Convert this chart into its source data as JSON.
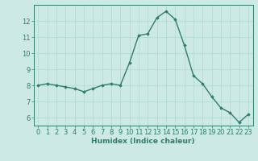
{
  "x": [
    0,
    1,
    2,
    3,
    4,
    5,
    6,
    7,
    8,
    9,
    10,
    11,
    12,
    13,
    14,
    15,
    16,
    17,
    18,
    19,
    20,
    21,
    22,
    23
  ],
  "y": [
    8.0,
    8.1,
    8.0,
    7.9,
    7.8,
    7.6,
    7.8,
    8.0,
    8.1,
    8.0,
    9.4,
    11.1,
    11.2,
    12.2,
    12.6,
    12.1,
    10.5,
    8.6,
    8.1,
    7.3,
    6.6,
    6.3,
    5.7,
    6.2
  ],
  "line_color": "#2e7d6e",
  "marker": "D",
  "marker_size": 1.8,
  "line_width": 1.0,
  "bg_color": "#cce9e4",
  "grid_color": "#b0d8d0",
  "xlabel": "Humidex (Indice chaleur)",
  "xlabel_fontsize": 6.5,
  "tick_fontsize": 6.0,
  "xlim": [
    -0.5,
    23.5
  ],
  "ylim": [
    5.5,
    13.0
  ],
  "yticks": [
    6,
    7,
    8,
    9,
    10,
    11,
    12
  ],
  "xticks": [
    0,
    1,
    2,
    3,
    4,
    5,
    6,
    7,
    8,
    9,
    10,
    11,
    12,
    13,
    14,
    15,
    16,
    17,
    18,
    19,
    20,
    21,
    22,
    23
  ],
  "spine_color": "#2e7d6e",
  "tick_color": "#2e7d6e",
  "label_color": "#2e7d6e"
}
